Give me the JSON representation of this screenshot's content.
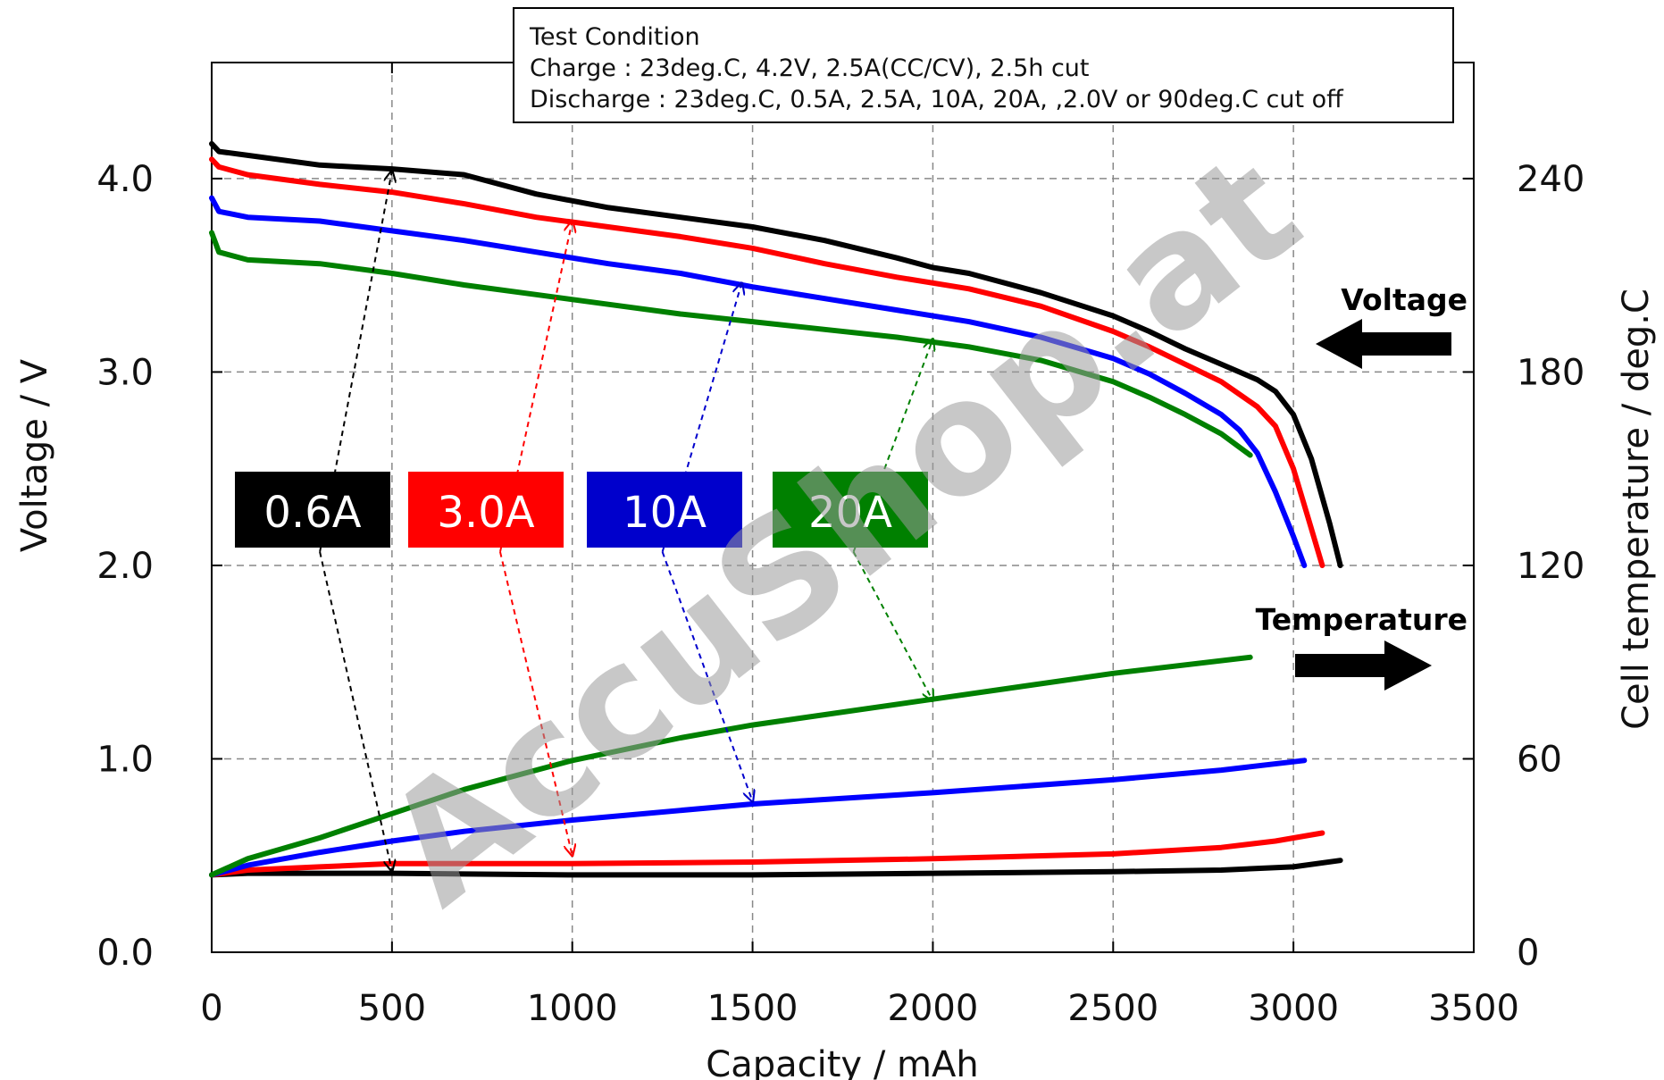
{
  "chart_data": {
    "type": "line",
    "xlabel": "Capacity / mAh",
    "ylabel": "Voltage / V",
    "y2label": "Cell temperature / deg.C",
    "xlim": [
      0,
      3500
    ],
    "ylim": [
      0,
      4.6
    ],
    "y2lim": [
      0,
      276
    ],
    "xticks": [
      0,
      500,
      1000,
      1500,
      2000,
      2500,
      3000,
      3500
    ],
    "yticks": [
      0.0,
      1.0,
      2.0,
      3.0,
      4.0
    ],
    "ytick_labels": [
      "0.0",
      "1.0",
      "2.0",
      "3.0",
      "4.0"
    ],
    "y2ticks": [
      0,
      60,
      120,
      180,
      240
    ],
    "grid": true,
    "test_condition": {
      "title": "Test Condition",
      "charge": "Charge : 23deg.C, 4.2V, 2.5A(CC/CV), 2.5h cut",
      "discharge": "Discharge : 23deg.C, 0.5A, 2.5A, 10A, 20A, ,2.0V or 90deg.C cut off"
    },
    "annotations": {
      "voltage": "Voltage",
      "temperature": "Temperature"
    },
    "watermark": "AccuShop.at",
    "legend": [
      {
        "label": "0.6A",
        "color": "#000000"
      },
      {
        "label": "3.0A",
        "color": "#ff0000"
      },
      {
        "label": "10A",
        "color": "#0000cc"
      },
      {
        "label": "20A",
        "color": "#008000"
      }
    ],
    "series": [
      {
        "name": "0.6A",
        "kind": "voltage",
        "axis": "left",
        "color": "#000000",
        "x": [
          0,
          20,
          100,
          300,
          500,
          700,
          900,
          1100,
          1300,
          1500,
          1700,
          1900,
          2000,
          2100,
          2300,
          2500,
          2600,
          2700,
          2800,
          2900,
          2950,
          3000,
          3050,
          3100,
          3130
        ],
        "y": [
          4.18,
          4.14,
          4.12,
          4.07,
          4.05,
          4.02,
          3.92,
          3.85,
          3.8,
          3.75,
          3.68,
          3.59,
          3.54,
          3.51,
          3.41,
          3.29,
          3.21,
          3.12,
          3.04,
          2.96,
          2.9,
          2.78,
          2.55,
          2.22,
          2.0
        ]
      },
      {
        "name": "3.0A",
        "kind": "voltage",
        "axis": "left",
        "color": "#ff0000",
        "x": [
          0,
          20,
          100,
          300,
          500,
          700,
          900,
          1100,
          1300,
          1500,
          1700,
          1900,
          2100,
          2300,
          2500,
          2600,
          2700,
          2800,
          2900,
          2950,
          3000,
          3040,
          3080
        ],
        "y": [
          4.1,
          4.06,
          4.02,
          3.97,
          3.93,
          3.87,
          3.8,
          3.75,
          3.7,
          3.64,
          3.56,
          3.49,
          3.43,
          3.34,
          3.21,
          3.13,
          3.04,
          2.95,
          2.82,
          2.72,
          2.5,
          2.25,
          2.0
        ]
      },
      {
        "name": "10A",
        "kind": "voltage",
        "axis": "left",
        "color": "#0000ff",
        "x": [
          0,
          20,
          100,
          300,
          500,
          700,
          900,
          1100,
          1300,
          1500,
          1700,
          1900,
          2100,
          2300,
          2500,
          2600,
          2700,
          2800,
          2850,
          2900,
          2950,
          3000,
          3030
        ],
        "y": [
          3.9,
          3.83,
          3.8,
          3.78,
          3.73,
          3.68,
          3.62,
          3.56,
          3.51,
          3.44,
          3.38,
          3.32,
          3.26,
          3.18,
          3.07,
          2.99,
          2.89,
          2.78,
          2.7,
          2.58,
          2.38,
          2.15,
          2.0
        ]
      },
      {
        "name": "20A",
        "kind": "voltage",
        "axis": "left",
        "color": "#008000",
        "x": [
          0,
          20,
          100,
          300,
          500,
          700,
          900,
          1100,
          1300,
          1500,
          1700,
          1900,
          2100,
          2300,
          2500,
          2600,
          2700,
          2800,
          2880
        ],
        "y": [
          3.72,
          3.62,
          3.58,
          3.56,
          3.51,
          3.45,
          3.4,
          3.35,
          3.3,
          3.26,
          3.22,
          3.18,
          3.13,
          3.06,
          2.95,
          2.87,
          2.78,
          2.68,
          2.57
        ]
      },
      {
        "name": "0.6A",
        "kind": "temperature",
        "axis": "right",
        "color": "#000000",
        "x": [
          0,
          100,
          500,
          1000,
          1500,
          2000,
          2500,
          2800,
          3000,
          3130
        ],
        "y": [
          24,
          24.5,
          24.5,
          24,
          24,
          24.5,
          25,
          25.5,
          26.5,
          28.5
        ]
      },
      {
        "name": "3.0A",
        "kind": "temperature",
        "axis": "right",
        "color": "#ff0000",
        "x": [
          0,
          100,
          300,
          500,
          1000,
          1500,
          2000,
          2500,
          2800,
          2950,
          3080
        ],
        "y": [
          24,
          25.5,
          26.5,
          27.5,
          27.5,
          28,
          29,
          30.5,
          32.5,
          34.5,
          37
        ]
      },
      {
        "name": "10A",
        "kind": "temperature",
        "axis": "right",
        "color": "#0000ff",
        "x": [
          0,
          100,
          300,
          500,
          700,
          1000,
          1500,
          2000,
          2500,
          2800,
          3030
        ],
        "y": [
          24,
          27,
          31,
          34.5,
          37.5,
          41,
          46,
          49.5,
          53.5,
          56.5,
          59.5
        ]
      },
      {
        "name": "20A",
        "kind": "temperature",
        "axis": "right",
        "color": "#008000",
        "x": [
          0,
          100,
          300,
          500,
          700,
          1000,
          1300,
          1500,
          2000,
          2500,
          2880
        ],
        "y": [
          24,
          29,
          35.5,
          43,
          50.5,
          59.5,
          66.5,
          70.5,
          78.5,
          86.5,
          91.5
        ]
      }
    ],
    "pointer_arrows": [
      {
        "color": "#000000",
        "from": [
          300,
          2.07
        ],
        "to_upper": [
          500,
          4.04
        ],
        "to_lower": [
          500,
          0.42
        ]
      },
      {
        "color": "#ff0000",
        "from": [
          800,
          2.07
        ],
        "to_upper": [
          1000,
          3.78
        ],
        "to_lower": [
          1000,
          0.5
        ]
      },
      {
        "color": "#0000cc",
        "from": [
          1250,
          2.07
        ],
        "to_upper": [
          1470,
          3.46
        ],
        "to_lower": [
          1500,
          0.78
        ]
      },
      {
        "color": "#008000",
        "from": [
          1780,
          2.07
        ],
        "to_upper": [
          2000,
          3.17
        ],
        "to_lower": [
          2000,
          1.3
        ]
      }
    ]
  }
}
